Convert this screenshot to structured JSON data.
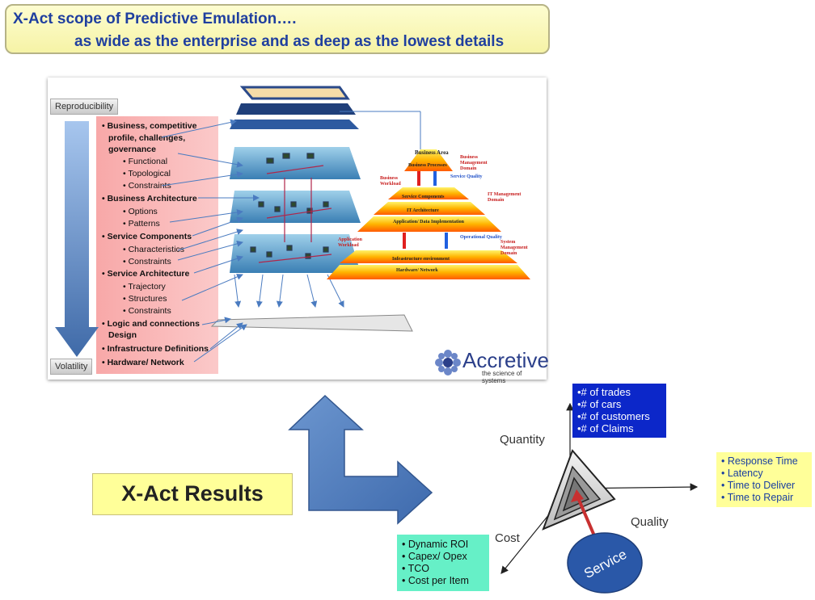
{
  "title": {
    "line1": "X-Act scope of Predictive Emulation….",
    "line2": "as wide as the enterprise and as deep as the lowest details"
  },
  "panel": {
    "reproducibility_label": "Reproducibility",
    "volatility_label": "Volatility",
    "items": [
      {
        "text": "• Business, competitive",
        "level": "main"
      },
      {
        "text": "profile, challenges,",
        "level": "main-cont"
      },
      {
        "text": "governance",
        "level": "main-cont"
      },
      {
        "text": "•      Functional",
        "level": "sub"
      },
      {
        "text": "•      Topological",
        "level": "sub"
      },
      {
        "text": "•      Constraints",
        "level": "sub"
      },
      {
        "text": "• Business Architecture",
        "level": "main"
      },
      {
        "text": "•      Options",
        "level": "sub"
      },
      {
        "text": "•      Patterns",
        "level": "sub"
      },
      {
        "text": "• Service Components",
        "level": "main"
      },
      {
        "text": "•      Characteristics",
        "level": "sub"
      },
      {
        "text": "•      Constraints",
        "level": "sub"
      },
      {
        "text": "•  Service Architecture",
        "level": "main"
      },
      {
        "text": "•      Trajectory",
        "level": "sub"
      },
      {
        "text": "•      Structures",
        "level": "sub"
      },
      {
        "text": "•      Constraints",
        "level": "sub"
      },
      {
        "text": "• Logic and connections",
        "level": "main"
      },
      {
        "text": "Design",
        "level": "main-cont"
      },
      {
        "text": "• Infrastructure  Definitions",
        "level": "main"
      },
      {
        "text": "• Hardware/ Network",
        "level": "main"
      }
    ],
    "pyramid": {
      "business_area": "Business Area",
      "business_processes": "Business Processes",
      "business_mgmt_domain": "Business Management Domain",
      "business_workload": "Business Workload",
      "service_quality": "Service Quality",
      "service_components": "Service Components",
      "it_architecture": "IT Architecture",
      "it_mgmt_domain": "IT Management Domain",
      "app_data_impl": "Application/ Data Implementation",
      "application_workload": "Application Workload",
      "operational_quality": "Operational Quality",
      "system_mgmt_domain": "System Management Domain",
      "infra_env": "Infrastructure environment",
      "hw_network": "Hardware/ Network"
    },
    "logo": {
      "name": "Accretive",
      "tagline": "the science of systems"
    }
  },
  "results_label": "X-Act Results",
  "quantity_box": [
    "•# of trades",
    "•# of cars",
    "•# of customers",
    "•# of Claims"
  ],
  "quality_box": [
    "• Response Time",
    "• Latency",
    "• Time to Deliver",
    "• Time to Repair"
  ],
  "cost_box": [
    "• Dynamic ROI",
    "• Capex/ Opex",
    "• TCO",
    "• Cost per Item"
  ],
  "axes": {
    "quantity": "Quantity",
    "quality": "Quality",
    "cost": "Cost"
  },
  "service_label": "Service",
  "colors": {
    "title_text": "#1f3f9f",
    "arrow_blue": "#4f7fbf",
    "quantity_box": "#0c27c9",
    "quality_box": "#ffff99",
    "cost_box": "#66f0c7",
    "service_ellipse": "#2a58a8"
  }
}
